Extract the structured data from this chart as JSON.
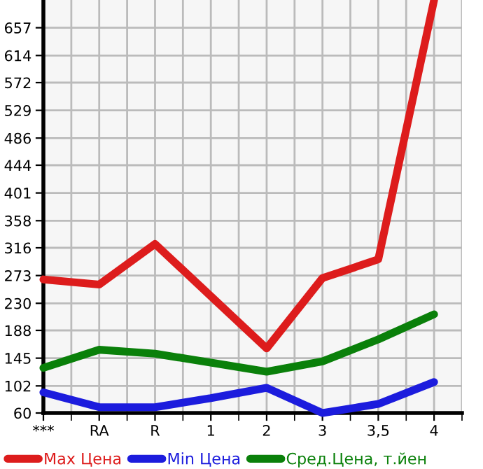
{
  "chart_data": {
    "type": "line",
    "categories": [
      "***",
      "RA",
      "R",
      "1",
      "2",
      "3",
      "3,5",
      "4"
    ],
    "series": [
      {
        "name": "Max Цена",
        "color": "#dd1c1c",
        "values": [
          267,
          259,
          322,
          241,
          160,
          269,
          298,
          700
        ]
      },
      {
        "name": "Min Цена",
        "color": "#1c1cdd",
        "values": [
          92,
          69,
          69,
          83,
          99,
          60,
          74,
          108
        ]
      },
      {
        "name": "Сред.Цена, т.йен",
        "color": "#0a800a",
        "values": [
          130,
          158,
          152,
          138,
          124,
          140,
          174,
          213
        ]
      }
    ],
    "ylim": [
      60,
      700
    ],
    "yticks": [
      60,
      102,
      145,
      188,
      230,
      273,
      316,
      358,
      401,
      444,
      486,
      529,
      572,
      614,
      657
    ],
    "grid": true,
    "legend": "bottom",
    "marker": "none",
    "line_style": "solid"
  }
}
